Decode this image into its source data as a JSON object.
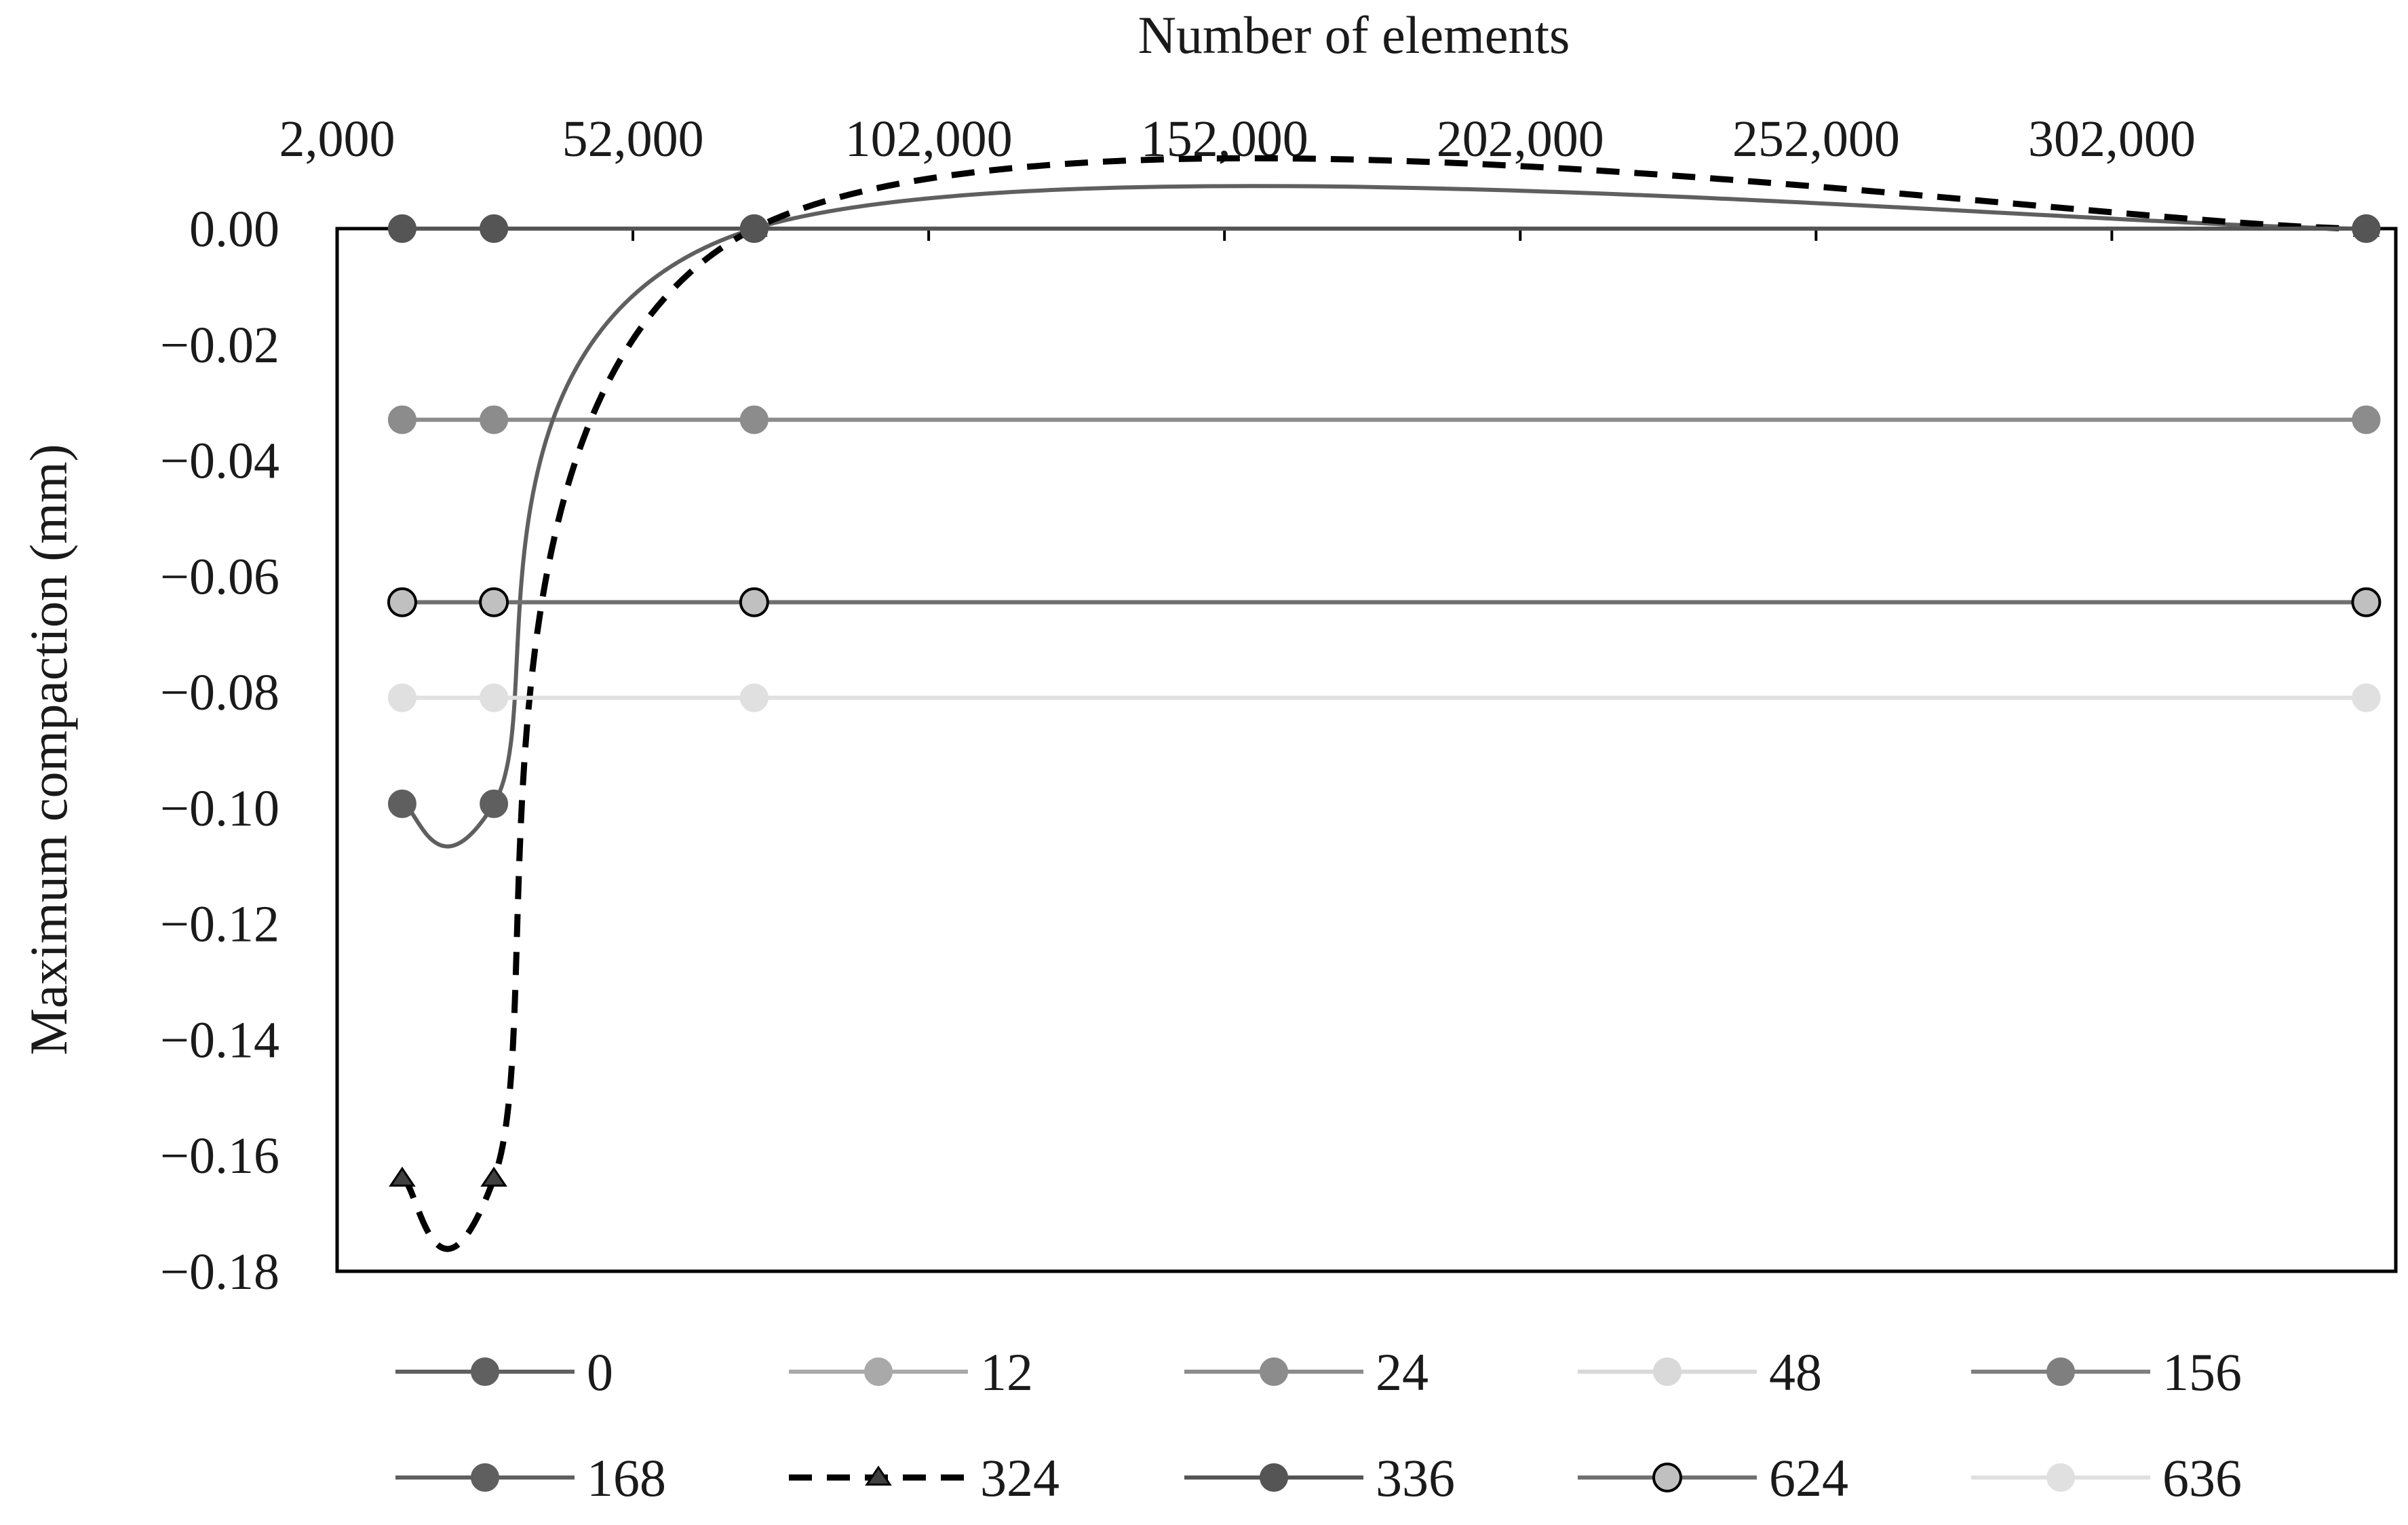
{
  "chart_data": {
    "type": "line",
    "title": "",
    "xlabel": "Number of elements",
    "ylabel": "Maximum compaction (mm)",
    "x_axis_position": "top",
    "xlim": [
      2000,
      350000
    ],
    "ylim": [
      -0.18,
      0.0
    ],
    "x_ticks": [
      2000,
      52000,
      102000,
      152000,
      202000,
      252000,
      302000
    ],
    "x_tick_labels": [
      "2,000",
      "52,000",
      "102,000",
      "152,000",
      "202,000",
      "252,000",
      "302,000"
    ],
    "y_ticks": [
      0.0,
      -0.02,
      -0.04,
      -0.06,
      -0.08,
      -0.1,
      -0.12,
      -0.14,
      -0.16,
      -0.18
    ],
    "y_tick_labels": [
      "0.00",
      "−0.02",
      "−0.04",
      "−0.06",
      "−0.08",
      "−0.10",
      "−0.12",
      "−0.14",
      "−0.16",
      "−0.18"
    ],
    "grid": false,
    "smooth": true,
    "legend_position": "bottom",
    "x": [
      13000,
      28500,
      72500,
      345000
    ],
    "series": [
      {
        "name": "0",
        "values": [
          0.0,
          0.0,
          0.0,
          0.0
        ],
        "color": "#606060",
        "marker": "circle",
        "marker_fill": "#606060",
        "dash": false
      },
      {
        "name": "12",
        "values": [
          -0.033,
          -0.033,
          -0.033,
          -0.033
        ],
        "color": "#a9a9a9",
        "marker": "circle",
        "marker_fill": "#a9a9a9",
        "dash": false
      },
      {
        "name": "24",
        "values": [
          -0.033,
          -0.033,
          -0.033,
          -0.033
        ],
        "color": "#8c8c8c",
        "marker": "circle",
        "marker_fill": "#8c8c8c",
        "dash": false
      },
      {
        "name": "48",
        "values": [
          -0.081,
          -0.081,
          -0.081,
          -0.081
        ],
        "color": "#d9d9d9",
        "marker": "circle",
        "marker_fill": "#d9d9d9",
        "dash": false
      },
      {
        "name": "156",
        "values": [
          -0.0645,
          -0.0645,
          -0.0645,
          -0.0645
        ],
        "color": "#7f7f7f",
        "marker": "circle",
        "marker_fill": "#7f7f7f",
        "dash": false
      },
      {
        "name": "168",
        "values": [
          -0.0993,
          -0.0993,
          0.0,
          0.0
        ],
        "color": "#5f5f5f",
        "marker": "circle",
        "marker_fill": "#5f5f5f",
        "dash": false
      },
      {
        "name": "324",
        "values": [
          -0.164,
          -0.164,
          0.0,
          0.0
        ],
        "color": "#000000",
        "marker": "triangle",
        "marker_fill": "#404040",
        "dash": true
      },
      {
        "name": "336",
        "values": [
          0.0,
          0.0,
          0.0,
          0.0
        ],
        "color": "#555555",
        "marker": "circle",
        "marker_fill": "#555555",
        "dash": false
      },
      {
        "name": "624",
        "values": [
          -0.0645,
          -0.0645,
          -0.0645,
          -0.0645
        ],
        "color": "#707070",
        "marker": "circle",
        "marker_fill": "#c0c0c0",
        "marker_stroke": "#000000",
        "dash": false
      },
      {
        "name": "636",
        "values": [
          -0.081,
          -0.081,
          -0.081,
          -0.081
        ],
        "color": "#e0e0e0",
        "marker": "circle",
        "marker_fill": "#e0e0e0",
        "dash": false
      }
    ]
  }
}
